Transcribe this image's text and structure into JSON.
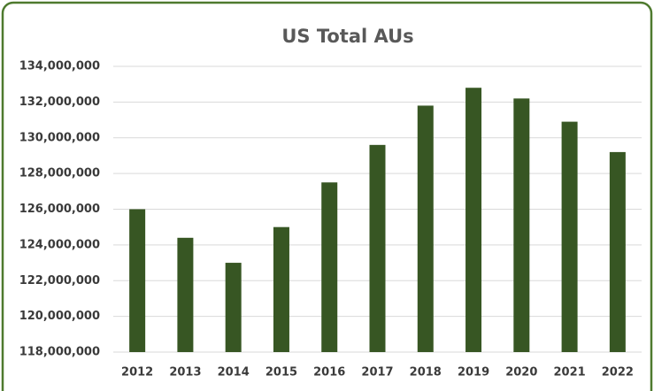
{
  "chart_data": {
    "type": "bar",
    "title": "US Total AUs",
    "categories": [
      "2012",
      "2013",
      "2014",
      "2015",
      "2016",
      "2017",
      "2018",
      "2019",
      "2020",
      "2021",
      "2022"
    ],
    "values": [
      126000000,
      124400000,
      123000000,
      125000000,
      127500000,
      129600000,
      131800000,
      132800000,
      132200000,
      130900000,
      129200000
    ],
    "color": "#375623",
    "ylim": [
      118000000,
      134000000
    ],
    "yticks": [
      {
        "value": 118000000,
        "label": "118,000,000"
      },
      {
        "value": 120000000,
        "label": "120,000,000"
      },
      {
        "value": 122000000,
        "label": "122,000,000"
      },
      {
        "value": 124000000,
        "label": "124,000,000"
      },
      {
        "value": 126000000,
        "label": "126,000,000"
      },
      {
        "value": 128000000,
        "label": "128,000,000"
      },
      {
        "value": 130000000,
        "label": "130,000,000"
      },
      {
        "value": 132000000,
        "label": "132,000,000"
      },
      {
        "value": 134000000,
        "label": "134,000,000"
      }
    ],
    "grid": true
  }
}
